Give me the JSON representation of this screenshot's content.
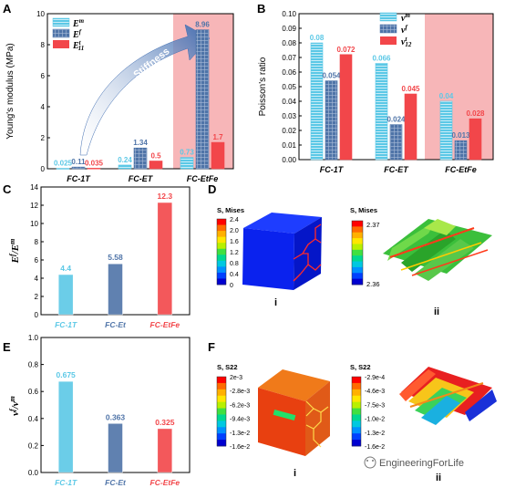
{
  "panels": {
    "A": {
      "letter": "A"
    },
    "B": {
      "letter": "B"
    },
    "C": {
      "letter": "C"
    },
    "D": {
      "letter": "D",
      "legend_i_title": "S, Mises",
      "legend_ii_title": "S, Mises",
      "legend_i_ticks": [
        "2.4",
        "2.0",
        "1.6",
        "1.2",
        "0.8",
        "0.4",
        "0"
      ],
      "legend_ii_top": "2.37",
      "legend_ii_bottom": "2.36",
      "label_i": "i",
      "label_ii": "ii"
    },
    "E": {
      "letter": "E"
    },
    "F": {
      "letter": "F",
      "legend_i_title": "S, S22",
      "legend_ii_title": "S, S22",
      "legend_i_ticks": [
        "2e-3",
        "-2.8e-3",
        "-6.2e-3",
        "-9.4e-3",
        "-1.3e-2",
        "-1.6e-2"
      ],
      "legend_ii_ticks": [
        "-2.9e-4",
        "-4.6e-3",
        "-7.5e-3",
        "-1.0e-2",
        "-1.3e-2",
        "-1.6e-2"
      ],
      "label_i": "i",
      "label_ii": "ii"
    }
  },
  "watermark": "EngineeringForLife",
  "colors": {
    "cyan": "#5bc8e6",
    "steel": "#4f74a8",
    "red": "#f2464a",
    "pink_band": "#f7b6b8",
    "arrow": "#3d6bb0"
  },
  "chart_data": [
    {
      "id": "A",
      "type": "bar",
      "ylabel": "Young's modulus (MPa)",
      "ylim": [
        0,
        10
      ],
      "yticks": [
        "0",
        "2",
        "4",
        "6",
        "8",
        "10"
      ],
      "categories": [
        "FC-1T",
        "FC-ET",
        "FC-EtFe"
      ],
      "series": [
        {
          "name": "Em",
          "values": [
            0.025,
            0.24,
            0.73
          ],
          "labels": [
            "0.025",
            "0.24",
            "0.73"
          ],
          "color": "#5bc8e6"
        },
        {
          "name": "Ef",
          "values": [
            0.11,
            1.34,
            8.96
          ],
          "labels": [
            "0.11",
            "1.34",
            "8.96"
          ],
          "color": "#4f74a8"
        },
        {
          "name": "E11",
          "values": [
            0.035,
            0.5,
            1.7
          ],
          "labels": [
            "0.035",
            "0.5",
            "1.7"
          ],
          "color": "#f2464a"
        }
      ],
      "annotation": "Stiffness",
      "highlight_category": "FC-EtFe"
    },
    {
      "id": "B",
      "type": "bar",
      "ylabel": "Poisson's ratio",
      "ylim": [
        0,
        0.1
      ],
      "yticks": [
        "0.00",
        "0.01",
        "0.02",
        "0.03",
        "0.04",
        "0.05",
        "0.06",
        "0.07",
        "0.08",
        "0.09",
        "0.10"
      ],
      "categories": [
        "FC-1T",
        "FC-ET",
        "FC-EtFe"
      ],
      "series": [
        {
          "name": "vm",
          "values": [
            0.08,
            0.066,
            0.04
          ],
          "labels": [
            "0.08",
            "0.066",
            "0.04"
          ],
          "color": "#5bc8e6"
        },
        {
          "name": "vf",
          "values": [
            0.054,
            0.024,
            0.013
          ],
          "labels": [
            "0.054",
            "0.024",
            "0.013"
          ],
          "color": "#4f74a8"
        },
        {
          "name": "v12",
          "values": [
            0.072,
            0.045,
            0.028
          ],
          "labels": [
            "0.072",
            "0.045",
            "0.028"
          ],
          "color": "#f2464a"
        }
      ],
      "highlight_category": "FC-EtFe"
    },
    {
      "id": "C",
      "type": "bar",
      "ylabel": "Ef/Em",
      "ylim": [
        0,
        14
      ],
      "yticks": [
        "0",
        "2",
        "4",
        "6",
        "8",
        "10",
        "12",
        "14"
      ],
      "categories": [
        "FC-1T",
        "FC-Et",
        "FC-EtFe"
      ],
      "values": [
        4.4,
        5.58,
        12.3
      ],
      "labels": [
        "4.4",
        "5.58",
        "12.3"
      ],
      "colors": [
        "#5bc8e6",
        "#4f74a8",
        "#f2464a"
      ]
    },
    {
      "id": "E",
      "type": "bar",
      "ylabel": "vf/vm",
      "ylim": [
        0,
        1.0
      ],
      "yticks": [
        "0.0",
        "0.2",
        "0.4",
        "0.6",
        "0.8",
        "1.0"
      ],
      "categories": [
        "FC-1T",
        "FC-Et",
        "FC-EtFe"
      ],
      "values": [
        0.675,
        0.363,
        0.325
      ],
      "labels": [
        "0.675",
        "0.363",
        "0.325"
      ],
      "colors": [
        "#5bc8e6",
        "#4f74a8",
        "#f2464a"
      ]
    }
  ]
}
